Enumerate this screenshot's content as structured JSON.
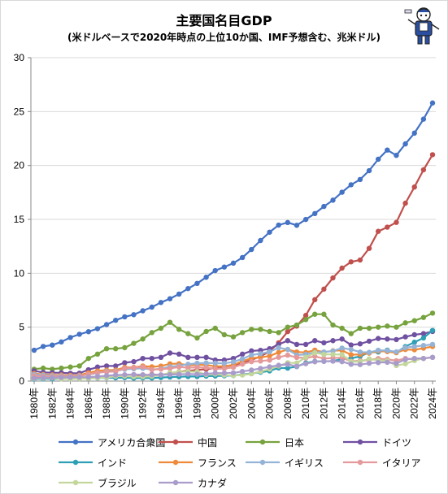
{
  "chart_data": {
    "type": "line",
    "title": "主要国名目GDP",
    "subtitle": "(米ドルベースで2020年時点の上位10か国、IMF予想含む、兆米ドル)",
    "ylim": [
      0,
      30
    ],
    "yticks": [
      0,
      5,
      10,
      15,
      20,
      25,
      30
    ],
    "x_range": [
      1980,
      2024
    ],
    "x_tick_labels": [
      "1980年",
      "1982年",
      "1984年",
      "1986年",
      "1988年",
      "1990年",
      "1992年",
      "1994年",
      "1996年",
      "1998年",
      "2000年",
      "2002年",
      "2004年",
      "2006年",
      "2008年",
      "2010年",
      "2012年",
      "2014年",
      "2016年",
      "2018年",
      "2020年",
      "2022年",
      "2024年"
    ],
    "grid": "horizontal",
    "legend_position": "bottom",
    "series": [
      {
        "name": "アメリカ合衆国",
        "color": "#4472c4",
        "values": [
          2.86,
          3.21,
          3.34,
          3.63,
          4.04,
          4.34,
          4.58,
          4.86,
          5.24,
          5.64,
          5.96,
          6.16,
          6.52,
          6.86,
          7.29,
          7.64,
          8.07,
          8.58,
          9.06,
          9.63,
          10.25,
          10.58,
          10.94,
          11.46,
          12.21,
          13.04,
          13.81,
          14.47,
          14.71,
          14.45,
          14.99,
          15.54,
          16.2,
          16.78,
          17.52,
          18.21,
          18.7,
          19.52,
          20.58,
          21.43,
          20.94,
          22.0,
          23.0,
          24.3,
          25.8
        ]
      },
      {
        "name": "中国",
        "color": "#c0504d",
        "values": [
          0.3,
          0.29,
          0.28,
          0.3,
          0.31,
          0.31,
          0.3,
          0.32,
          0.41,
          0.46,
          0.4,
          0.41,
          0.49,
          0.61,
          0.56,
          0.73,
          0.86,
          0.96,
          1.03,
          1.09,
          1.21,
          1.34,
          1.47,
          1.66,
          1.96,
          2.29,
          2.75,
          3.55,
          4.59,
          5.1,
          6.09,
          7.55,
          8.53,
          9.57,
          10.48,
          11.06,
          11.23,
          12.31,
          13.89,
          14.28,
          14.72,
          16.5,
          18.0,
          19.6,
          21.0
        ]
      },
      {
        "name": "日本",
        "color": "#77a33e",
        "values": [
          1.1,
          1.2,
          1.1,
          1.2,
          1.3,
          1.4,
          2.1,
          2.5,
          3.0,
          3.0,
          3.1,
          3.5,
          3.9,
          4.5,
          4.9,
          5.45,
          4.8,
          4.4,
          4.0,
          4.6,
          4.9,
          4.3,
          4.1,
          4.5,
          4.8,
          4.8,
          4.6,
          4.5,
          5.0,
          5.2,
          5.7,
          6.2,
          6.2,
          5.2,
          4.9,
          4.4,
          4.9,
          4.9,
          5.0,
          5.1,
          5.0,
          5.4,
          5.6,
          5.9,
          6.3
        ]
      },
      {
        "name": "ドイツ",
        "color": "#7050a0",
        "values": [
          0.95,
          0.8,
          0.78,
          0.77,
          0.72,
          0.73,
          1.05,
          1.3,
          1.4,
          1.4,
          1.7,
          1.8,
          2.1,
          2.1,
          2.2,
          2.6,
          2.5,
          2.2,
          2.2,
          2.2,
          1.95,
          1.95,
          2.1,
          2.5,
          2.8,
          2.85,
          3.0,
          3.4,
          3.75,
          3.4,
          3.4,
          3.75,
          3.55,
          3.75,
          3.9,
          3.35,
          3.45,
          3.7,
          3.95,
          3.9,
          3.85,
          4.1,
          4.3,
          4.4,
          4.6
        ]
      },
      {
        "name": "インド",
        "color": "#2e9fb5",
        "values": [
          0.19,
          0.2,
          0.2,
          0.22,
          0.21,
          0.23,
          0.25,
          0.28,
          0.3,
          0.3,
          0.32,
          0.27,
          0.29,
          0.28,
          0.33,
          0.37,
          0.4,
          0.42,
          0.42,
          0.46,
          0.47,
          0.49,
          0.51,
          0.6,
          0.71,
          0.82,
          0.94,
          1.22,
          1.2,
          1.34,
          1.68,
          1.82,
          1.83,
          1.86,
          2.04,
          2.1,
          2.29,
          2.65,
          2.7,
          2.87,
          2.66,
          3.2,
          3.6,
          4.0,
          4.7
        ]
      },
      {
        "name": "フランス",
        "color": "#ee8a3a",
        "values": [
          0.7,
          0.62,
          0.58,
          0.56,
          0.53,
          0.55,
          0.77,
          0.94,
          1.02,
          1.02,
          1.27,
          1.27,
          1.4,
          1.32,
          1.39,
          1.6,
          1.61,
          1.46,
          1.5,
          1.49,
          1.37,
          1.38,
          1.5,
          1.84,
          2.12,
          2.2,
          2.32,
          2.66,
          2.93,
          2.7,
          2.65,
          2.87,
          2.68,
          2.81,
          2.85,
          2.44,
          2.47,
          2.59,
          2.79,
          2.73,
          2.63,
          2.93,
          2.9,
          3.05,
          3.2
        ]
      },
      {
        "name": "イギリス",
        "color": "#94b3d6",
        "values": [
          0.6,
          0.55,
          0.5,
          0.48,
          0.46,
          0.49,
          0.6,
          0.75,
          0.91,
          0.93,
          1.09,
          1.14,
          1.18,
          1.06,
          1.14,
          1.34,
          1.42,
          1.56,
          1.65,
          1.68,
          1.66,
          1.64,
          1.78,
          2.06,
          2.42,
          2.54,
          2.71,
          3.09,
          2.93,
          2.41,
          2.48,
          2.66,
          2.7,
          2.78,
          3.06,
          2.93,
          2.69,
          2.66,
          2.86,
          2.83,
          2.71,
          3.1,
          3.2,
          3.3,
          3.4
        ]
      },
      {
        "name": "イタリア",
        "color": "#e5999a",
        "values": [
          0.48,
          0.43,
          0.43,
          0.44,
          0.44,
          0.45,
          0.64,
          0.79,
          0.86,
          0.89,
          1.18,
          1.24,
          1.32,
          1.06,
          1.1,
          1.17,
          1.31,
          1.24,
          1.27,
          1.25,
          1.14,
          1.16,
          1.27,
          1.57,
          1.8,
          1.86,
          1.94,
          2.21,
          2.4,
          2.19,
          2.13,
          2.29,
          2.09,
          2.14,
          2.16,
          1.84,
          1.88,
          1.96,
          2.09,
          2.01,
          1.89,
          2.1,
          2.0,
          2.1,
          2.2
        ]
      },
      {
        "name": "ブラジル",
        "color": "#c3d69b",
        "values": [
          0.24,
          0.26,
          0.28,
          0.2,
          0.2,
          0.22,
          0.26,
          0.29,
          0.33,
          0.45,
          0.46,
          0.41,
          0.4,
          0.44,
          0.56,
          0.77,
          0.85,
          0.88,
          0.86,
          0.6,
          0.65,
          0.56,
          0.51,
          0.56,
          0.67,
          0.89,
          1.11,
          1.4,
          1.7,
          1.67,
          2.21,
          2.62,
          2.47,
          2.47,
          2.46,
          1.8,
          1.8,
          2.06,
          1.92,
          1.88,
          1.44,
          1.6,
          1.9,
          2.1,
          2.2
        ]
      },
      {
        "name": "カナダ",
        "color": "#a99ccb",
        "values": [
          0.27,
          0.3,
          0.31,
          0.34,
          0.35,
          0.36,
          0.37,
          0.42,
          0.5,
          0.56,
          0.59,
          0.61,
          0.59,
          0.58,
          0.58,
          0.6,
          0.63,
          0.65,
          0.63,
          0.67,
          0.74,
          0.74,
          0.76,
          0.89,
          1.02,
          1.17,
          1.32,
          1.46,
          1.55,
          1.37,
          1.61,
          1.79,
          1.83,
          1.85,
          1.8,
          1.56,
          1.53,
          1.65,
          1.72,
          1.74,
          1.64,
          2.0,
          2.1,
          2.1,
          2.2
        ]
      }
    ]
  }
}
